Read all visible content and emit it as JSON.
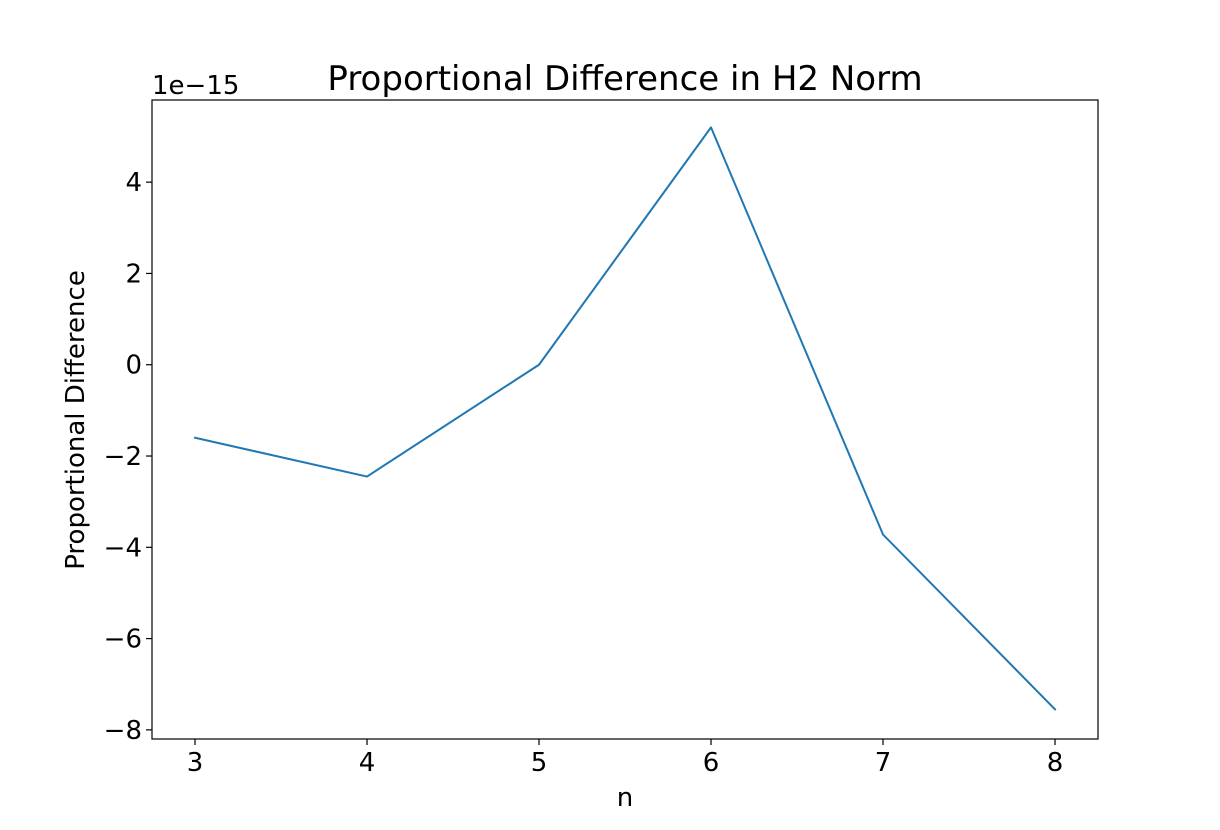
{
  "chart_data": {
    "type": "line",
    "title": "Proportional Difference in H2 Norm",
    "xlabel": "n",
    "ylabel": "Proportional Difference",
    "y_offset_label": "1e−15",
    "y_scale_factor": 1e-15,
    "x": [
      3,
      4,
      5,
      6,
      7,
      8
    ],
    "series": [
      {
        "color": "#1f77b4",
        "values": [
          -1.6,
          -2.45,
          0.0,
          5.2,
          -3.72,
          -7.55
        ]
      }
    ],
    "xticks": [
      3,
      4,
      5,
      6,
      7,
      8
    ],
    "xtick_labels": [
      "3",
      "4",
      "5",
      "6",
      "7",
      "8"
    ],
    "yticks": [
      -8,
      -6,
      -4,
      -2,
      0,
      2,
      4
    ],
    "ytick_labels": [
      "−8",
      "−6",
      "−4",
      "−2",
      "0",
      "2",
      "4"
    ],
    "xlim": [
      2.75,
      8.25
    ],
    "ylim": [
      -8.2,
      5.8
    ],
    "grid": false,
    "legend": "none"
  }
}
